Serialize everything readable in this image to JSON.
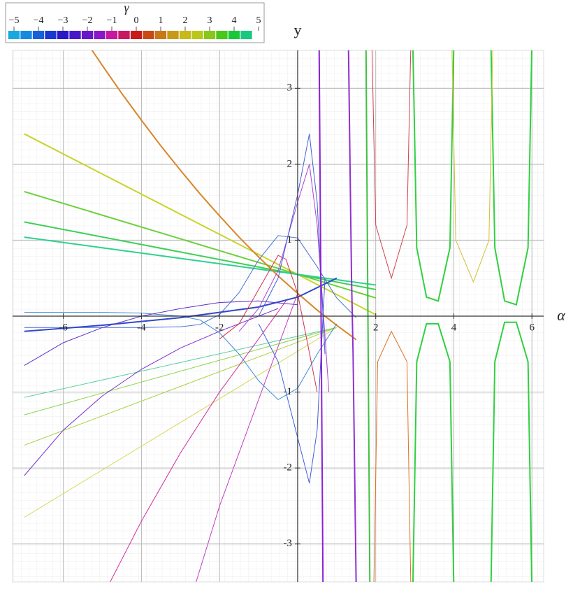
{
  "chart_data": {
    "type": "line",
    "x_label": "α",
    "y_label": "y",
    "xlim": [
      -7.3,
      6.3
    ],
    "ylim": [
      -3.5,
      3.5
    ],
    "xticks": [
      -6,
      -4,
      -2,
      2,
      4,
      6
    ],
    "yticks": [
      -3,
      -2,
      -1,
      1,
      2,
      3
    ],
    "grid": true,
    "colorbar": {
      "label": "γ",
      "range": [
        -5,
        5
      ],
      "ticks": [
        {
          "value": -5,
          "label": "−5"
        },
        {
          "value": -4,
          "label": "−4"
        },
        {
          "value": -3,
          "label": "−3"
        },
        {
          "value": -2,
          "label": "−2"
        },
        {
          "value": -1,
          "label": "−1"
        },
        0,
        1,
        2,
        3,
        4,
        5
      ],
      "colors": [
        "#18a8e0",
        "#1888e0",
        "#1860d8",
        "#1838d0",
        "#2818c8",
        "#4818c8",
        "#6818c8",
        "#8818c8",
        "#c818a0",
        "#c81860",
        "#c81818",
        "#c84818",
        "#c87818",
        "#c89818",
        "#c8b818",
        "#b8c818",
        "#88c818",
        "#48c818",
        "#18c838",
        "#18c880"
      ]
    },
    "series": [
      {
        "color": "#c8d42a",
        "width": 2,
        "x": [
          -7,
          2
        ],
        "values": [
          2.4,
          0.02
        ]
      },
      {
        "color": "#6ad03a",
        "width": 2,
        "x": [
          -7,
          2
        ],
        "values": [
          1.64,
          0.24
        ]
      },
      {
        "color": "#3fcf55",
        "width": 2,
        "x": [
          -7,
          2
        ],
        "values": [
          1.24,
          0.35
        ]
      },
      {
        "color": "#2fd08f",
        "width": 2,
        "x": [
          -7,
          2
        ],
        "values": [
          1.04,
          0.41
        ]
      },
      {
        "color": "#5bd0a0",
        "width": 1,
        "x": [
          -7,
          1
        ],
        "values": [
          -1.07,
          -0.15
        ]
      },
      {
        "color": "#8cd44a",
        "width": 1,
        "x": [
          -7,
          1
        ],
        "values": [
          -1.3,
          -0.15
        ]
      },
      {
        "color": "#a8d040",
        "width": 1,
        "x": [
          -7,
          1
        ],
        "values": [
          -1.7,
          -0.15
        ]
      },
      {
        "color": "#d8d860",
        "width": 1,
        "x": [
          -7,
          1
        ],
        "values": [
          -2.65,
          -0.15
        ]
      },
      {
        "color": "#d9862a",
        "width": 2,
        "x": [
          -5.5,
          -5,
          -4.5,
          -4,
          -3.5,
          -3,
          -2.5,
          -2,
          -1.5,
          -1,
          -0.5,
          0,
          0.5,
          1,
          1.5
        ],
        "values": [
          3.68,
          3.3,
          2.93,
          2.58,
          2.24,
          1.92,
          1.61,
          1.32,
          1.04,
          0.78,
          0.53,
          0.3,
          0.08,
          -0.12,
          -0.31
        ]
      },
      {
        "color": "#4a6fd8",
        "width": 1,
        "x": [
          -7,
          -6,
          -5,
          -4,
          -3,
          -2.5,
          -2,
          -1.5,
          -1,
          -0.5,
          0,
          0.5,
          1,
          1.5
        ],
        "values": [
          -0.15,
          -0.15,
          -0.15,
          -0.15,
          -0.14,
          -0.11,
          0.02,
          0.31,
          0.74,
          1.06,
          1.03,
          0.65,
          0.24,
          -0.02
        ]
      },
      {
        "color": "#3a8ad8",
        "width": 1,
        "x": [
          -7,
          -6,
          -5,
          -4,
          -3,
          -2.5,
          -2,
          -1.5,
          -1,
          -0.5,
          0,
          0.5,
          1
        ],
        "values": [
          0.05,
          0.05,
          0.05,
          0.04,
          0,
          -0.05,
          -0.22,
          -0.5,
          -0.85,
          -1.1,
          -0.95,
          -0.5,
          -0.1
        ]
      },
      {
        "color": "#3048c8",
        "width": 2,
        "x": [
          -7,
          -5,
          -3,
          -1,
          0,
          1
        ],
        "values": [
          -0.2,
          -0.12,
          -0.02,
          0.12,
          0.25,
          0.5
        ]
      },
      {
        "color": "#5a30c8",
        "width": 1,
        "x": [
          -7,
          -6,
          -5,
          -4,
          -3,
          -2,
          -1,
          0
        ],
        "values": [
          -0.65,
          -0.35,
          -0.15,
          0,
          0.1,
          0.18,
          0.2,
          0.15
        ]
      },
      {
        "color": "#7a30d0",
        "width": 1,
        "x": [
          -7,
          -6,
          -5,
          -4,
          -3,
          -2,
          -1,
          -0.5
        ],
        "values": [
          -2.1,
          -1.5,
          -1.05,
          -0.7,
          -0.42,
          -0.2,
          0,
          0.1
        ]
      },
      {
        "color": "#c040c0",
        "width": 1,
        "x": [
          -2.6,
          -2,
          -1.5,
          -1,
          -0.5,
          0
        ],
        "values": [
          -3.5,
          -2.5,
          -1.8,
          -1.1,
          -0.4,
          0.3
        ]
      },
      {
        "color": "#d030a0",
        "width": 1,
        "x": [
          -4.8,
          -4,
          -3,
          -2,
          -1,
          -0.3
        ],
        "values": [
          -3.5,
          -2.7,
          -1.8,
          -1,
          -0.3,
          0.2
        ]
      },
      {
        "color": "#d03050",
        "width": 1,
        "x": [
          -2,
          -1.5,
          -1,
          -0.5,
          -0.3,
          0,
          0.5
        ],
        "values": [
          -0.3,
          -0.1,
          0.35,
          0.8,
          0.75,
          0.3,
          -1
        ]
      },
      {
        "color": "#b040d0",
        "width": 1,
        "x": [
          -1.5,
          -1,
          -0.5,
          0,
          0.3,
          0.5,
          0.8
        ],
        "values": [
          -0.2,
          0.1,
          0.6,
          1.5,
          2,
          1.2,
          -1
        ]
      },
      {
        "color": "#4060d8",
        "width": 1,
        "x": [
          -1,
          -0.5,
          0,
          0.3,
          0.5,
          0.7
        ],
        "values": [
          0,
          0.5,
          1.6,
          2.4,
          1.5,
          -0.5
        ]
      },
      {
        "color": "#4060d8",
        "width": 1,
        "x": [
          -1,
          -0.5,
          0,
          0.3,
          0.5,
          0.7
        ],
        "values": [
          -0.1,
          -0.6,
          -1.6,
          -2.2,
          -1.5,
          0.5
        ]
      },
      {
        "color": "#30d040",
        "width": 2,
        "x": [
          2.95,
          3.05,
          3.3,
          3.6,
          3.9,
          4
        ],
        "values": [
          3.6,
          0.9,
          0.25,
          0.2,
          0.9,
          3.6
        ]
      },
      {
        "color": "#30d040",
        "width": 2,
        "x": [
          2.95,
          3.05,
          3.3,
          3.6,
          3.9,
          4
        ],
        "values": [
          -3.6,
          -0.6,
          -0.1,
          -0.1,
          -0.6,
          -3.6
        ]
      },
      {
        "color": "#30d040",
        "width": 2,
        "x": [
          4.95,
          5.05,
          5.3,
          5.6,
          5.9,
          6
        ],
        "values": [
          3.6,
          0.9,
          0.2,
          0.15,
          0.9,
          3.6
        ]
      },
      {
        "color": "#30d040",
        "width": 2,
        "x": [
          4.95,
          5.05,
          5.3,
          5.6,
          5.9,
          6
        ],
        "values": [
          -3.6,
          -0.6,
          -0.08,
          -0.08,
          -0.6,
          -3.6
        ]
      },
      {
        "color": "#9030d0",
        "width": 2,
        "x": [
          1.3,
          1.38,
          1.42,
          1.5
        ],
        "values": [
          3.6,
          0.5,
          -0.5,
          -3.6
        ]
      },
      {
        "color": "#8a20d8",
        "width": 2,
        "x": [
          0.55,
          0.6,
          0.65
        ],
        "values": [
          3.6,
          0,
          -3.6
        ]
      },
      {
        "color": "#e07020",
        "width": 1,
        "x": [
          1.95,
          2.05,
          2.4,
          2.8,
          2.9
        ],
        "values": [
          -3.6,
          -0.6,
          -0.2,
          -0.6,
          -3.6
        ]
      },
      {
        "color": "#d04050",
        "width": 1,
        "x": [
          1.9,
          2,
          2.4,
          2.8,
          2.9
        ],
        "values": [
          3.6,
          1.2,
          0.5,
          1.2,
          3.6
        ]
      },
      {
        "color": "#d0c030",
        "width": 1,
        "x": [
          3.95,
          4.05,
          4.5,
          4.9,
          5
        ],
        "values": [
          3.6,
          1,
          0.45,
          1,
          3.6
        ]
      },
      {
        "color": "#40c040",
        "width": 2,
        "x": [
          1.75,
          1.8,
          1.85
        ],
        "values": [
          3.6,
          0,
          -3.6
        ]
      }
    ]
  }
}
